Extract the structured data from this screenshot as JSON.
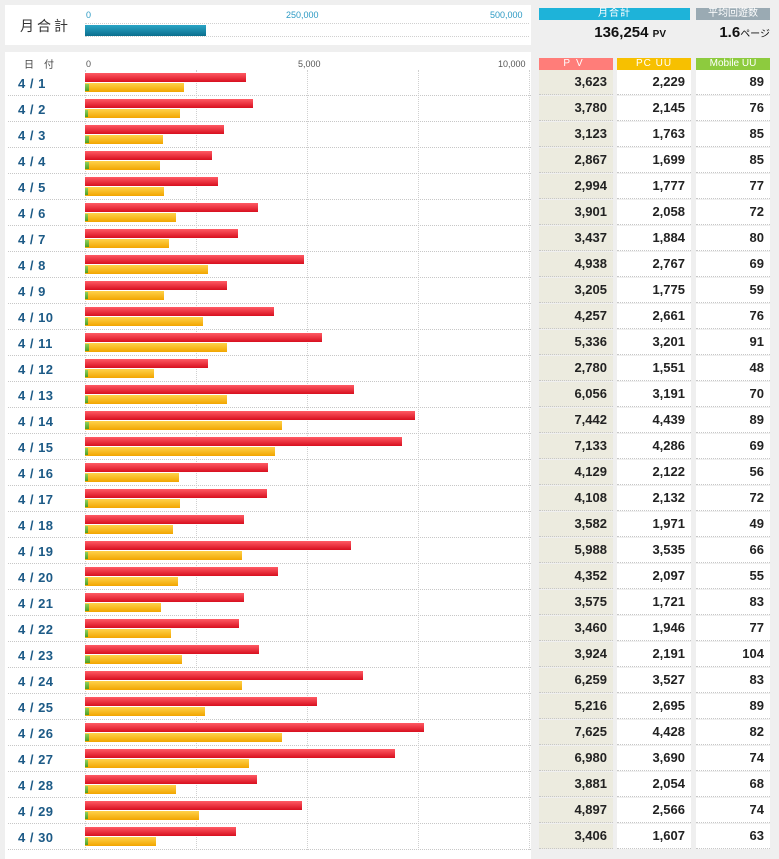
{
  "summary": {
    "label": "月合計",
    "axis_ticks": [
      "0",
      "250,000",
      "500,000"
    ],
    "month_header": "月合計",
    "month_value": "136,254",
    "month_unit": "PV",
    "avg_header": "平均回遊数",
    "avg_value": "1.6",
    "avg_unit": "ページ"
  },
  "daily": {
    "date_header": "日付",
    "axis_ticks": [
      "0",
      "5,000",
      "10,000"
    ],
    "col_headers": [
      "PV",
      "PC UU",
      "Mobile UU"
    ]
  },
  "colors": {
    "pv": "#e8202c",
    "pc_uu": "#f5ad00",
    "mobile_uu": "#6cbf3c",
    "summary_bar": "#0e87a8",
    "month_header": "#1eb3d9",
    "avg_header": "#9aaab3"
  },
  "chart_data": [
    {
      "type": "bar",
      "orientation": "horizontal",
      "categories": [
        "月合計"
      ],
      "values": [
        136254
      ],
      "xlim": [
        0,
        500000
      ]
    },
    {
      "type": "bar",
      "orientation": "horizontal",
      "xlim": [
        0,
        10000
      ],
      "categories": [
        "4 / 1",
        "4 / 2",
        "4 / 3",
        "4 / 4",
        "4 / 5",
        "4 / 6",
        "4 / 7",
        "4 / 8",
        "4 / 9",
        "4 / 10",
        "4 / 11",
        "4 / 12",
        "4 / 13",
        "4 / 14",
        "4 / 15",
        "4 / 16",
        "4 / 17",
        "4 / 18",
        "4 / 19",
        "4 / 20",
        "4 / 21",
        "4 / 22",
        "4 / 23",
        "4 / 24",
        "4 / 25",
        "4 / 26",
        "4 / 27",
        "4 / 28",
        "4 / 29",
        "4 / 30"
      ],
      "series": [
        {
          "name": "PV",
          "values": [
            3623,
            3780,
            3123,
            2867,
            2994,
            3901,
            3437,
            4938,
            3205,
            4257,
            5336,
            2780,
            6056,
            7442,
            7133,
            4129,
            4108,
            3582,
            5988,
            4352,
            3575,
            3460,
            3924,
            6259,
            5216,
            7625,
            6980,
            3881,
            4897,
            3406
          ]
        },
        {
          "name": "PC UU",
          "values": [
            2229,
            2145,
            1763,
            1699,
            1777,
            2058,
            1884,
            2767,
            1775,
            2661,
            3201,
            1551,
            3191,
            4439,
            4286,
            2122,
            2132,
            1971,
            3535,
            2097,
            1721,
            1946,
            2191,
            3527,
            2695,
            4428,
            3690,
            2054,
            2566,
            1607
          ]
        },
        {
          "name": "Mobile UU",
          "values": [
            89,
            76,
            85,
            85,
            77,
            72,
            80,
            69,
            59,
            76,
            91,
            48,
            70,
            89,
            69,
            56,
            72,
            49,
            66,
            55,
            83,
            77,
            104,
            83,
            89,
            82,
            74,
            68,
            74,
            63
          ]
        }
      ]
    }
  ]
}
